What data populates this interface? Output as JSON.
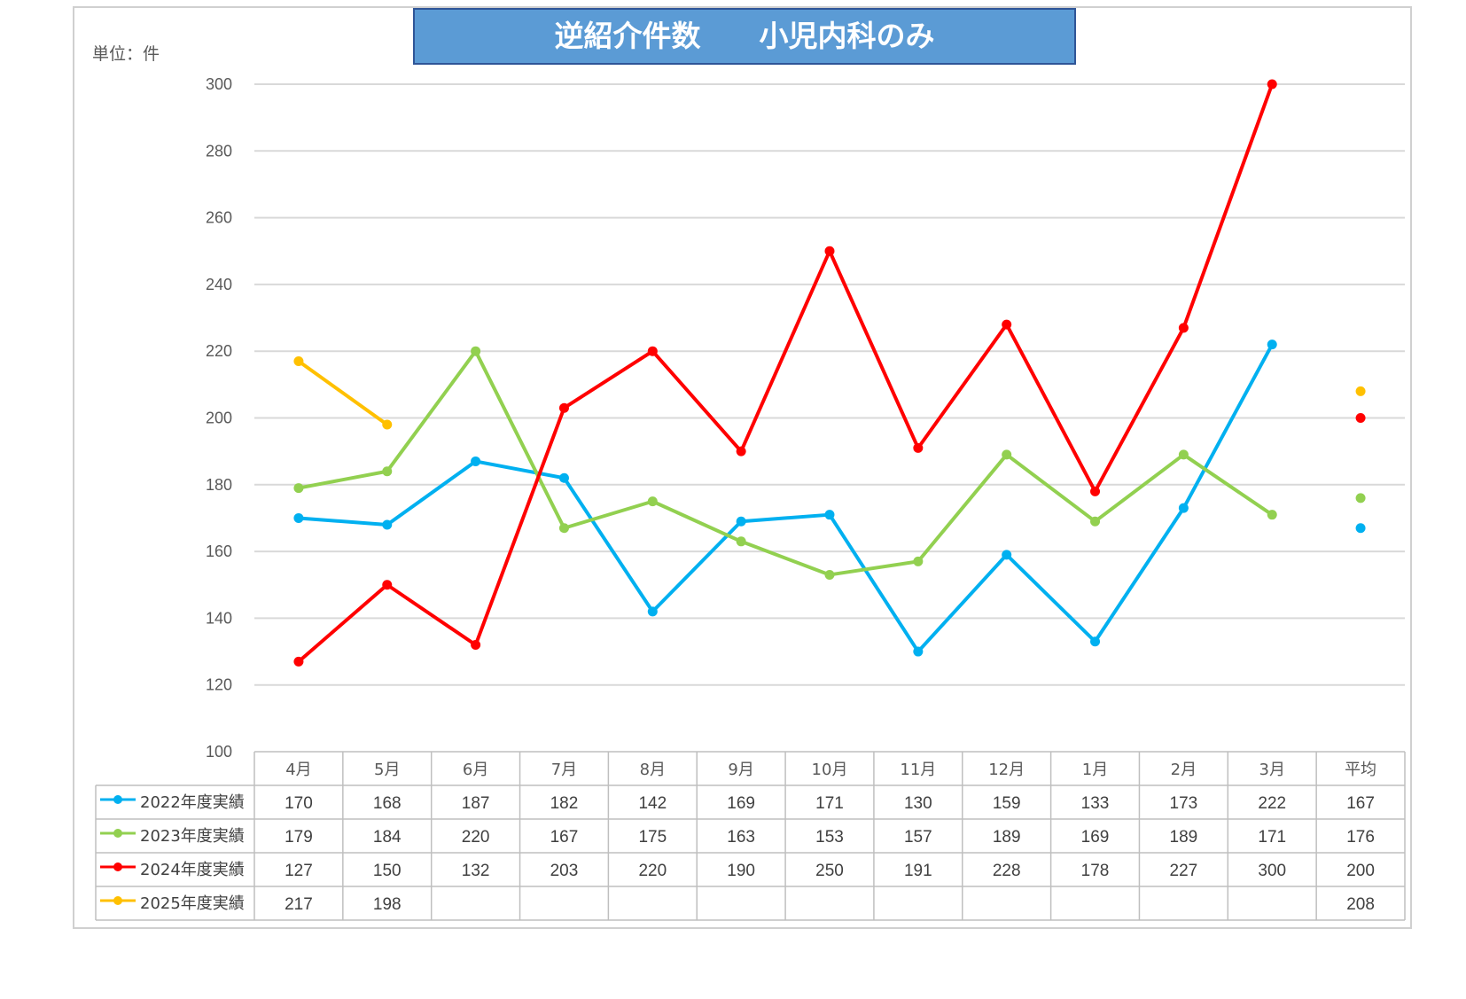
{
  "chart_data": {
    "type": "line",
    "title": "逆紹介件数　　小児内科のみ",
    "unit_label": "単位：件",
    "categories": [
      "4月",
      "5月",
      "6月",
      "7月",
      "8月",
      "9月",
      "10月",
      "11月",
      "12月",
      "1月",
      "2月",
      "3月"
    ],
    "average_label": "平均",
    "ylim": [
      100,
      300
    ],
    "yticks": [
      100,
      120,
      140,
      160,
      180,
      200,
      220,
      240,
      260,
      280,
      300
    ],
    "grid": true,
    "legend": "data-table",
    "series": [
      {
        "name": "2022年度実績",
        "color": "#00b0f0",
        "values": [
          170,
          168,
          187,
          182,
          142,
          169,
          171,
          130,
          159,
          133,
          173,
          222
        ],
        "average": 167
      },
      {
        "name": "2023年度実績",
        "color": "#92d050",
        "values": [
          179,
          184,
          220,
          167,
          175,
          163,
          153,
          157,
          189,
          169,
          189,
          171
        ],
        "average": 176
      },
      {
        "name": "2024年度実績",
        "color": "#ff0000",
        "values": [
          127,
          150,
          132,
          203,
          220,
          190,
          250,
          191,
          228,
          178,
          227,
          300
        ],
        "average": 200
      },
      {
        "name": "2025年度実績",
        "color": "#ffc000",
        "values": [
          217,
          198,
          null,
          null,
          null,
          null,
          null,
          null,
          null,
          null,
          null,
          null
        ],
        "average": 208
      }
    ]
  }
}
